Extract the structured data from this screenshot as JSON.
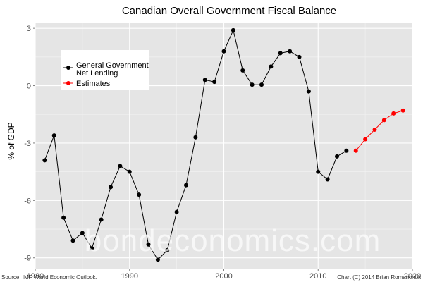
{
  "chart_data": {
    "type": "line",
    "title": "Canadian Overall Government Fiscal Balance",
    "xlabel": "",
    "ylabel": "% of GDP",
    "xlim": [
      1980,
      2020
    ],
    "ylim": [
      -9.6,
      3.3
    ],
    "xticks": [
      1980,
      1990,
      2000,
      2010,
      2020
    ],
    "yticks": [
      3,
      0,
      -3,
      -6,
      -9
    ],
    "grid": true,
    "legend_position": "top-left",
    "series": [
      {
        "name": "General Government Net Lending",
        "color": "#000000",
        "x": [
          1981,
          1982,
          1983,
          1984,
          1985,
          1986,
          1987,
          1988,
          1989,
          1990,
          1991,
          1992,
          1993,
          1994,
          1995,
          1996,
          1997,
          1998,
          1999,
          2000,
          2001,
          2002,
          2003,
          2004,
          2005,
          2006,
          2007,
          2008,
          2009,
          2010,
          2011,
          2012,
          2013
        ],
        "values": [
          -3.9,
          -2.6,
          -6.9,
          -8.1,
          -7.7,
          -8.5,
          -7.0,
          -5.3,
          -4.2,
          -4.5,
          -5.7,
          -8.3,
          -9.1,
          -8.6,
          -6.6,
          -5.2,
          -2.7,
          0.3,
          0.2,
          1.8,
          2.9,
          0.8,
          0.05,
          0.05,
          1.0,
          1.7,
          1.8,
          1.5,
          -0.3,
          -4.5,
          -4.9,
          -3.7,
          -3.4
        ]
      },
      {
        "name": "Estimates",
        "color": "#ff0000",
        "x": [
          2014,
          2015,
          2016,
          2017,
          2018,
          2019
        ],
        "values": [
          -3.4,
          -2.8,
          -2.3,
          -1.8,
          -1.45,
          -1.3
        ]
      }
    ],
    "legend_labels": [
      "General Government",
      "Net Lending",
      "Estimates"
    ],
    "watermark": "bondeconomics.com",
    "source": "Source: IMF World Economic Outlook.",
    "credit": "Chart (C) 2014 Brian Romanchuk"
  }
}
